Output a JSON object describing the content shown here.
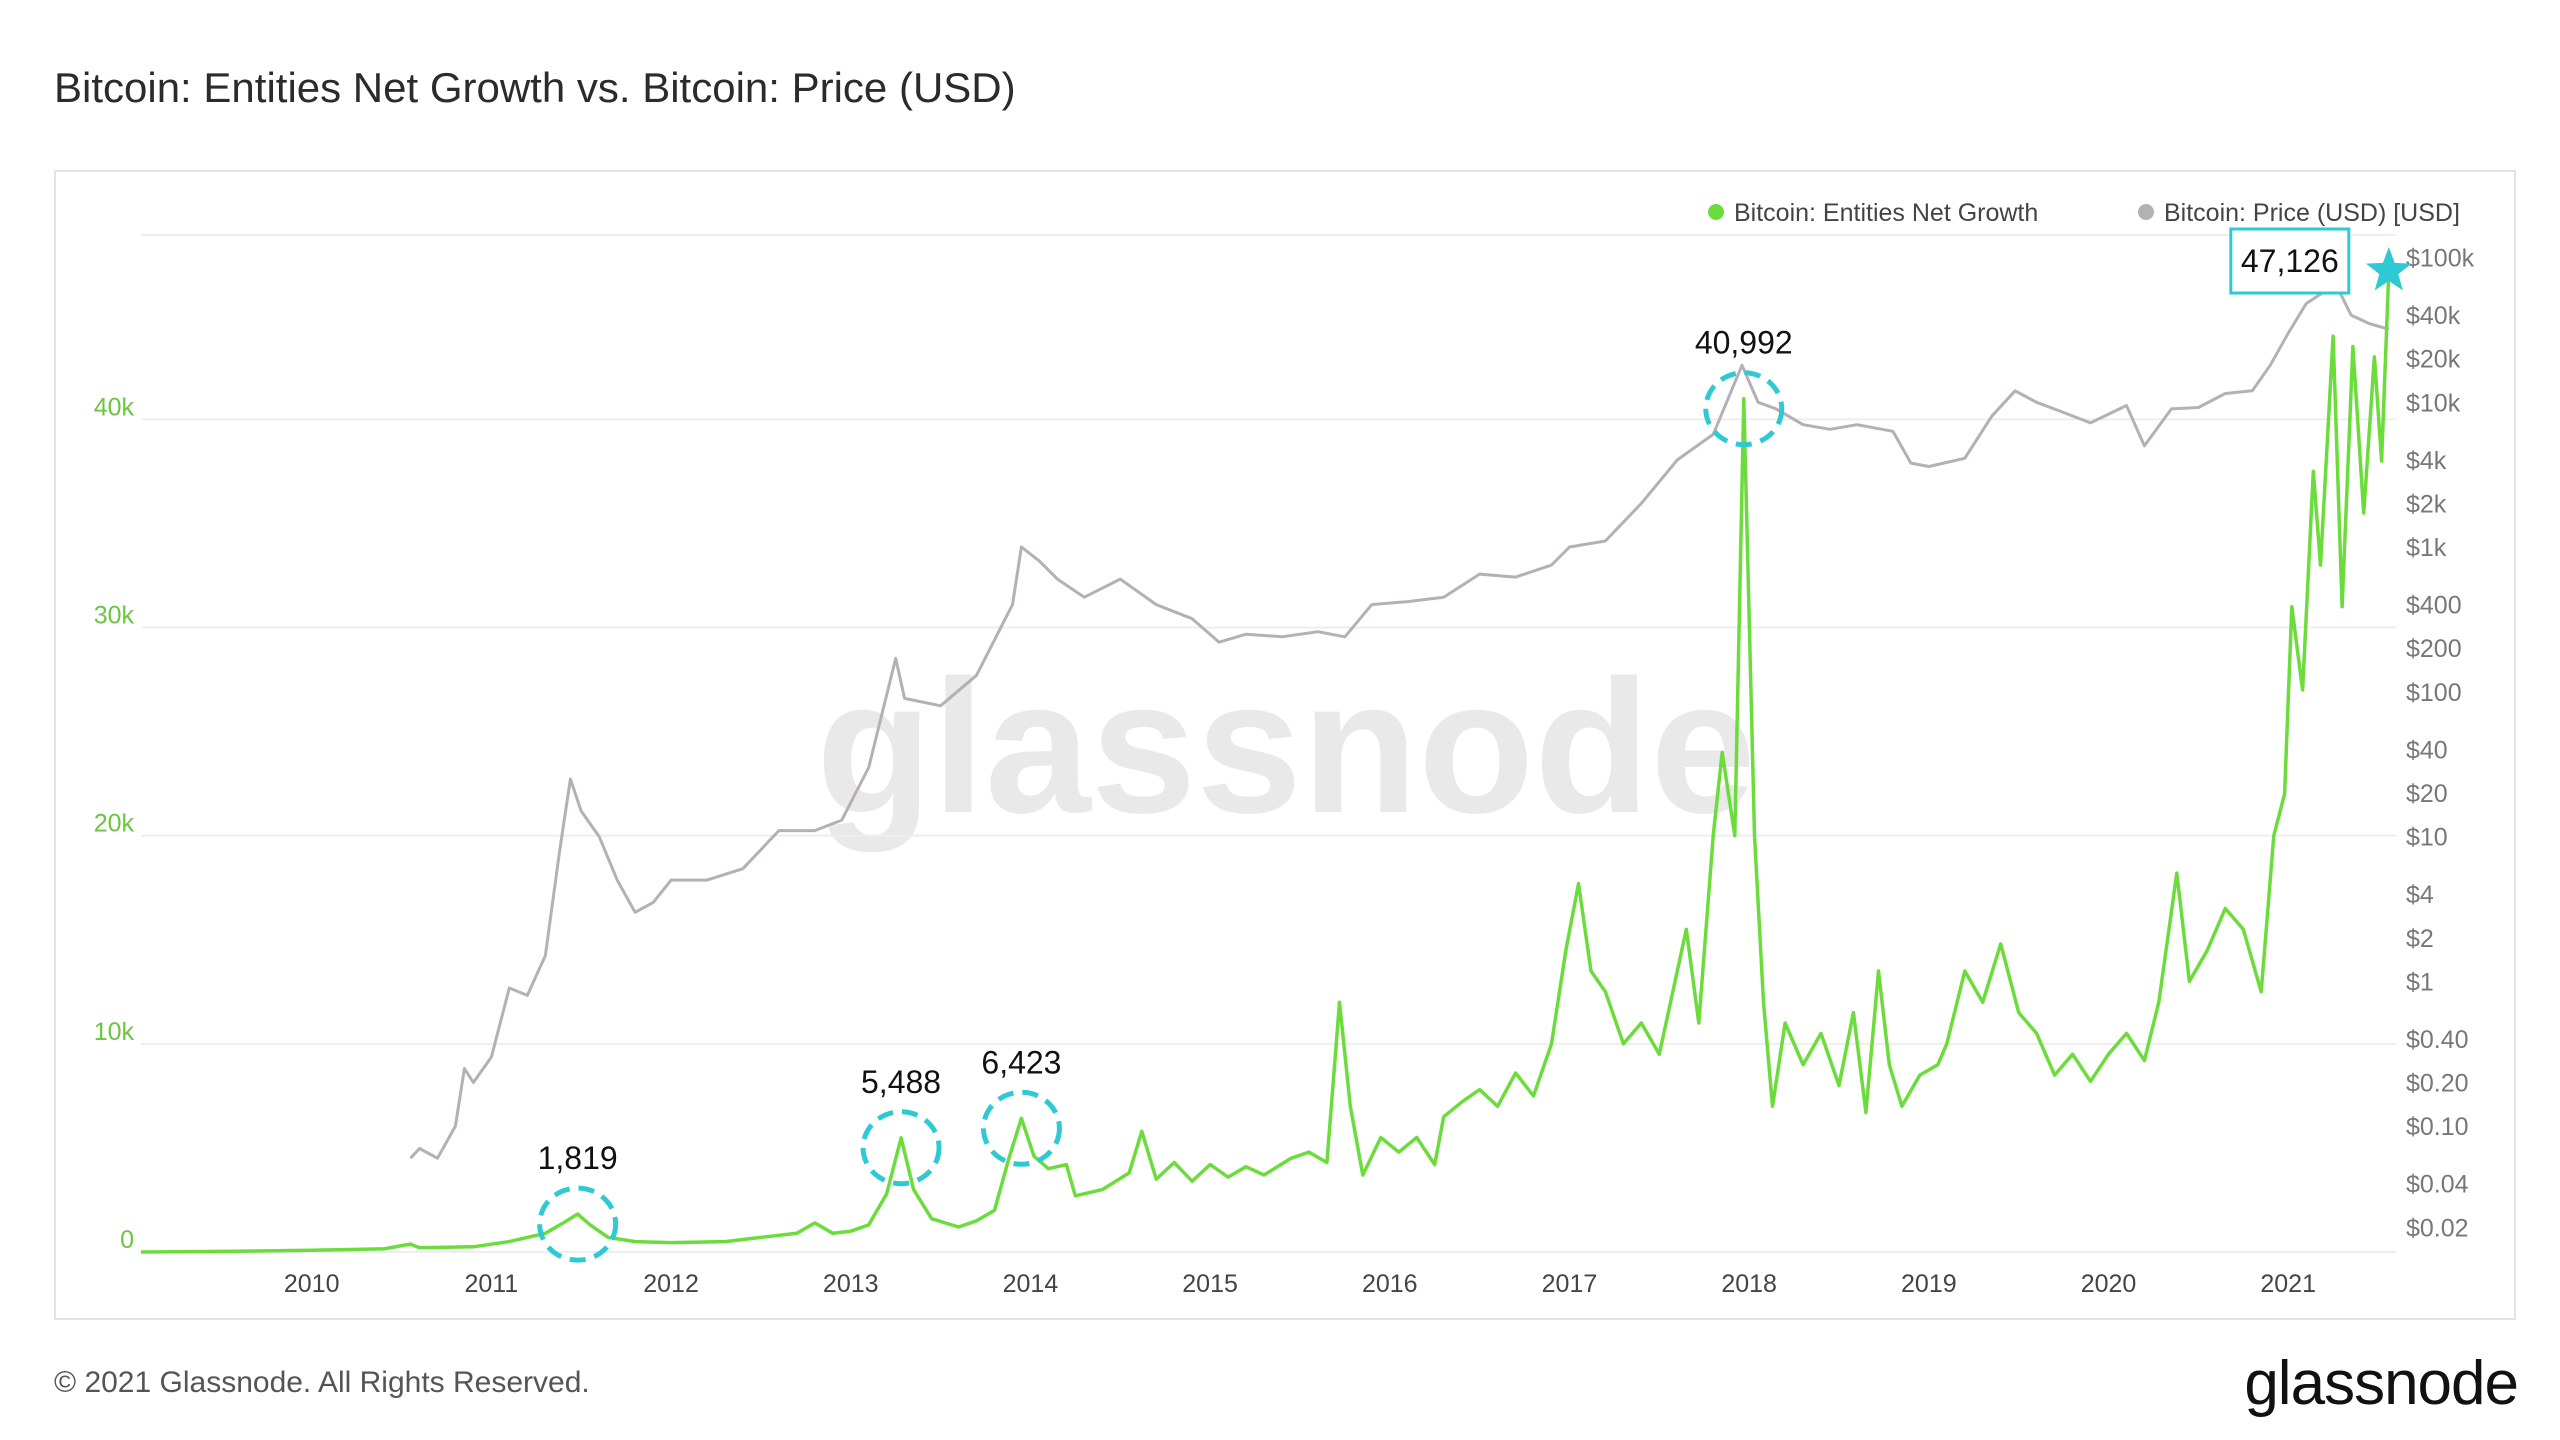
{
  "header": {
    "title": "Bitcoin: Entities Net Growth vs. Bitcoin: Price (USD)"
  },
  "footer": {
    "copyright": "© 2021 Glassnode. All Rights Reserved.",
    "brand": "glassnode"
  },
  "watermark": "glassnode",
  "colors": {
    "growth": "#6cdc3c",
    "price": "#b5b0b3",
    "annotation": "#2ec9d3",
    "grid": "#eeeeee"
  },
  "chart_data": {
    "type": "line",
    "title": "Bitcoin: Entities Net Growth vs. Bitcoin: Price (USD)",
    "legend": {
      "placement": "top-right",
      "items": [
        {
          "name": "Bitcoin: Entities Net Growth",
          "color": "#6cdc3c"
        },
        {
          "name": "Bitcoin: Price (USD) [USD]",
          "color": "#b5b0b3"
        }
      ]
    },
    "x_range": [
      2009.05,
      2021.6
    ],
    "x_ticks": [
      {
        "value": 2010,
        "label": "2010"
      },
      {
        "value": 2011,
        "label": "2011"
      },
      {
        "value": 2012,
        "label": "2012"
      },
      {
        "value": 2013,
        "label": "2013"
      },
      {
        "value": 2014,
        "label": "2014"
      },
      {
        "value": 2015,
        "label": "2015"
      },
      {
        "value": 2016,
        "label": "2016"
      },
      {
        "value": 2017,
        "label": "2017"
      },
      {
        "value": 2018,
        "label": "2018"
      },
      {
        "value": 2019,
        "label": "2019"
      },
      {
        "value": 2020,
        "label": "2020"
      },
      {
        "value": 2021,
        "label": "2021"
      }
    ],
    "y_left": {
      "range": [
        0,
        49000
      ],
      "ticks": [
        {
          "value": 0,
          "label": "0"
        },
        {
          "value": 10000,
          "label": "10k"
        },
        {
          "value": 20000,
          "label": "20k"
        },
        {
          "value": 30000,
          "label": "30k"
        },
        {
          "value": 40000,
          "label": "40k"
        }
      ]
    },
    "y_right": {
      "scale": "log",
      "range": [
        0.0135,
        150000
      ],
      "ticks": [
        {
          "value": 0.02,
          "label": "$0.02"
        },
        {
          "value": 0.04,
          "label": "$0.04"
        },
        {
          "value": 0.1,
          "label": "$0.10"
        },
        {
          "value": 0.2,
          "label": "$0.20"
        },
        {
          "value": 0.4,
          "label": "$0.40"
        },
        {
          "value": 1,
          "label": "$1"
        },
        {
          "value": 2,
          "label": "$2"
        },
        {
          "value": 4,
          "label": "$4"
        },
        {
          "value": 10,
          "label": "$10"
        },
        {
          "value": 20,
          "label": "$20"
        },
        {
          "value": 40,
          "label": "$40"
        },
        {
          "value": 100,
          "label": "$100"
        },
        {
          "value": 200,
          "label": "$200"
        },
        {
          "value": 400,
          "label": "$400"
        },
        {
          "value": 1000,
          "label": "$1k"
        },
        {
          "value": 2000,
          "label": "$2k"
        },
        {
          "value": 4000,
          "label": "$4k"
        },
        {
          "value": 10000,
          "label": "$10k"
        },
        {
          "value": 20000,
          "label": "$20k"
        },
        {
          "value": 40000,
          "label": "$40k"
        },
        {
          "value": 100000,
          "label": "$100k"
        }
      ]
    },
    "series": [
      {
        "name": "Bitcoin: Entities Net Growth",
        "axis": "left",
        "color": "#6cdc3c",
        "points": [
          [
            2009.05,
            0
          ],
          [
            2009.5,
            30
          ],
          [
            2010.0,
            80
          ],
          [
            2010.4,
            150
          ],
          [
            2010.55,
            380
          ],
          [
            2010.6,
            200
          ],
          [
            2010.9,
            250
          ],
          [
            2011.1,
            500
          ],
          [
            2011.3,
            900
          ],
          [
            2011.4,
            1400
          ],
          [
            2011.48,
            1819
          ],
          [
            2011.55,
            1300
          ],
          [
            2011.65,
            700
          ],
          [
            2011.8,
            500
          ],
          [
            2012.0,
            450
          ],
          [
            2012.3,
            500
          ],
          [
            2012.5,
            700
          ],
          [
            2012.7,
            900
          ],
          [
            2012.8,
            1400
          ],
          [
            2012.9,
            900
          ],
          [
            2013.0,
            1000
          ],
          [
            2013.1,
            1300
          ],
          [
            2013.2,
            2800
          ],
          [
            2013.28,
            5488
          ],
          [
            2013.35,
            3000
          ],
          [
            2013.45,
            1600
          ],
          [
            2013.6,
            1200
          ],
          [
            2013.7,
            1500
          ],
          [
            2013.8,
            2000
          ],
          [
            2013.88,
            4500
          ],
          [
            2013.95,
            6423
          ],
          [
            2014.02,
            4600
          ],
          [
            2014.1,
            4000
          ],
          [
            2014.2,
            4200
          ],
          [
            2014.25,
            2700
          ],
          [
            2014.4,
            3000
          ],
          [
            2014.55,
            3800
          ],
          [
            2014.62,
            5800
          ],
          [
            2014.7,
            3500
          ],
          [
            2014.8,
            4300
          ],
          [
            2014.9,
            3400
          ],
          [
            2015.0,
            4200
          ],
          [
            2015.1,
            3600
          ],
          [
            2015.2,
            4100
          ],
          [
            2015.3,
            3700
          ],
          [
            2015.45,
            4500
          ],
          [
            2015.55,
            4800
          ],
          [
            2015.65,
            4300
          ],
          [
            2015.72,
            12000
          ],
          [
            2015.78,
            7000
          ],
          [
            2015.85,
            3700
          ],
          [
            2015.95,
            5500
          ],
          [
            2016.05,
            4800
          ],
          [
            2016.15,
            5500
          ],
          [
            2016.25,
            4200
          ],
          [
            2016.3,
            6500
          ],
          [
            2016.4,
            7200
          ],
          [
            2016.5,
            7800
          ],
          [
            2016.6,
            7000
          ],
          [
            2016.7,
            8600
          ],
          [
            2016.8,
            7500
          ],
          [
            2016.9,
            10000
          ],
          [
            2016.98,
            14500
          ],
          [
            2017.05,
            17700
          ],
          [
            2017.12,
            13500
          ],
          [
            2017.2,
            12500
          ],
          [
            2017.3,
            10000
          ],
          [
            2017.4,
            11000
          ],
          [
            2017.5,
            9500
          ],
          [
            2017.6,
            13500
          ],
          [
            2017.65,
            15500
          ],
          [
            2017.72,
            11000
          ],
          [
            2017.8,
            20000
          ],
          [
            2017.85,
            24000
          ],
          [
            2017.92,
            20000
          ],
          [
            2017.97,
            40992
          ],
          [
            2018.03,
            20000
          ],
          [
            2018.08,
            12000
          ],
          [
            2018.13,
            7000
          ],
          [
            2018.2,
            11000
          ],
          [
            2018.3,
            9000
          ],
          [
            2018.4,
            10500
          ],
          [
            2018.5,
            8000
          ],
          [
            2018.58,
            11500
          ],
          [
            2018.65,
            6700
          ],
          [
            2018.72,
            13500
          ],
          [
            2018.78,
            9000
          ],
          [
            2018.85,
            7000
          ],
          [
            2018.95,
            8500
          ],
          [
            2019.05,
            9000
          ],
          [
            2019.1,
            10000
          ],
          [
            2019.2,
            13500
          ],
          [
            2019.3,
            12000
          ],
          [
            2019.4,
            14800
          ],
          [
            2019.5,
            11500
          ],
          [
            2019.6,
            10500
          ],
          [
            2019.7,
            8500
          ],
          [
            2019.8,
            9500
          ],
          [
            2019.9,
            8200
          ],
          [
            2020.0,
            9500
          ],
          [
            2020.1,
            10500
          ],
          [
            2020.2,
            9200
          ],
          [
            2020.28,
            12000
          ],
          [
            2020.38,
            18200
          ],
          [
            2020.45,
            13000
          ],
          [
            2020.55,
            14500
          ],
          [
            2020.65,
            16500
          ],
          [
            2020.75,
            15500
          ],
          [
            2020.85,
            12500
          ],
          [
            2020.92,
            20000
          ],
          [
            2020.98,
            22000
          ],
          [
            2021.02,
            31000
          ],
          [
            2021.08,
            27000
          ],
          [
            2021.14,
            37500
          ],
          [
            2021.18,
            33000
          ],
          [
            2021.25,
            44000
          ],
          [
            2021.3,
            31000
          ],
          [
            2021.36,
            43500
          ],
          [
            2021.42,
            35500
          ],
          [
            2021.48,
            43000
          ],
          [
            2021.52,
            38000
          ],
          [
            2021.56,
            47126
          ]
        ]
      },
      {
        "name": "Bitcoin: Price (USD) [USD]",
        "axis": "right",
        "color": "#b5b0b3",
        "points": [
          [
            2010.55,
            0.06
          ],
          [
            2010.6,
            0.07
          ],
          [
            2010.7,
            0.06
          ],
          [
            2010.8,
            0.1
          ],
          [
            2010.85,
            0.25
          ],
          [
            2010.9,
            0.2
          ],
          [
            2011.0,
            0.3
          ],
          [
            2011.1,
            0.9
          ],
          [
            2011.2,
            0.8
          ],
          [
            2011.3,
            1.5
          ],
          [
            2011.38,
            8
          ],
          [
            2011.44,
            25
          ],
          [
            2011.5,
            15
          ],
          [
            2011.6,
            10
          ],
          [
            2011.7,
            5
          ],
          [
            2011.8,
            3
          ],
          [
            2011.9,
            3.5
          ],
          [
            2012.0,
            5
          ],
          [
            2012.2,
            5
          ],
          [
            2012.4,
            6
          ],
          [
            2012.6,
            11
          ],
          [
            2012.8,
            11
          ],
          [
            2012.95,
            13
          ],
          [
            2013.1,
            30
          ],
          [
            2013.25,
            170
          ],
          [
            2013.3,
            90
          ],
          [
            2013.5,
            80
          ],
          [
            2013.7,
            130
          ],
          [
            2013.9,
            400
          ],
          [
            2013.95,
            1000
          ],
          [
            2014.05,
            800
          ],
          [
            2014.15,
            600
          ],
          [
            2014.3,
            450
          ],
          [
            2014.5,
            600
          ],
          [
            2014.7,
            400
          ],
          [
            2014.9,
            320
          ],
          [
            2015.05,
            220
          ],
          [
            2015.2,
            250
          ],
          [
            2015.4,
            240
          ],
          [
            2015.6,
            260
          ],
          [
            2015.75,
            240
          ],
          [
            2015.9,
            400
          ],
          [
            2016.1,
            420
          ],
          [
            2016.3,
            450
          ],
          [
            2016.5,
            650
          ],
          [
            2016.7,
            620
          ],
          [
            2016.9,
            750
          ],
          [
            2017.0,
            1000
          ],
          [
            2017.2,
            1100
          ],
          [
            2017.4,
            2000
          ],
          [
            2017.6,
            4000
          ],
          [
            2017.8,
            6000
          ],
          [
            2017.96,
            18000
          ],
          [
            2018.05,
            10000
          ],
          [
            2018.15,
            9000
          ],
          [
            2018.3,
            7000
          ],
          [
            2018.45,
            6500
          ],
          [
            2018.6,
            7000
          ],
          [
            2018.8,
            6300
          ],
          [
            2018.9,
            3800
          ],
          [
            2019.0,
            3600
          ],
          [
            2019.2,
            4100
          ],
          [
            2019.35,
            8000
          ],
          [
            2019.48,
            12000
          ],
          [
            2019.6,
            10000
          ],
          [
            2019.75,
            8500
          ],
          [
            2019.9,
            7200
          ],
          [
            2020.1,
            9500
          ],
          [
            2020.2,
            5000
          ],
          [
            2020.35,
            9000
          ],
          [
            2020.5,
            9200
          ],
          [
            2020.65,
            11500
          ],
          [
            2020.8,
            12000
          ],
          [
            2020.9,
            18000
          ],
          [
            2021.0,
            30000
          ],
          [
            2021.1,
            48000
          ],
          [
            2021.2,
            58000
          ],
          [
            2021.28,
            60000
          ],
          [
            2021.35,
            40000
          ],
          [
            2021.45,
            35000
          ],
          [
            2021.52,
            33000
          ],
          [
            2021.56,
            32000
          ]
        ]
      }
    ],
    "annotations": [
      {
        "x": 2011.48,
        "y": 1819,
        "label": "1,819",
        "marker": "circle"
      },
      {
        "x": 2013.28,
        "y": 5488,
        "label": "5,488",
        "marker": "circle"
      },
      {
        "x": 2013.95,
        "y": 6423,
        "label": "6,423",
        "marker": "circle"
      },
      {
        "x": 2017.97,
        "y": 40992,
        "label": "40,992",
        "marker": "circle"
      },
      {
        "x": 2021.56,
        "y": 47126,
        "label": "47,126",
        "marker": "star"
      }
    ]
  }
}
